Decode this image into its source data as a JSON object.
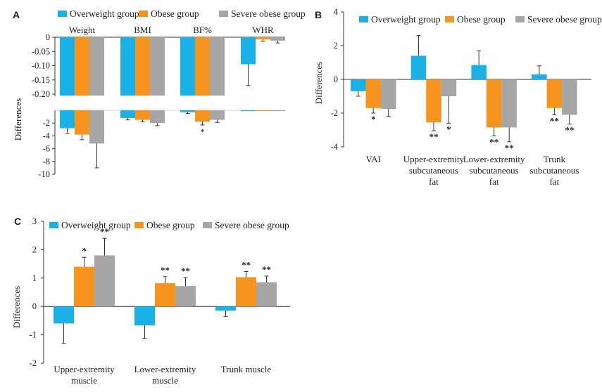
{
  "colors": {
    "overweight": "#1ab0e8",
    "obese": "#f7941d",
    "severe": "#a6a6a6"
  },
  "chart_data": [
    {
      "panel": "A",
      "type": "bar",
      "ylabel": "Differences",
      "legend": [
        "Overweight group",
        "Obese group",
        "Severe obese group"
      ],
      "legend_position": "top",
      "categories": [
        "Weight",
        "BMI",
        "BF%",
        "WHR"
      ],
      "broken_axis": true,
      "upper_segment": {
        "ylim": [
          -0.2,
          0
        ],
        "ticks": [
          "0",
          "-0.05",
          "-0.10",
          "-0.15",
          "-0.20"
        ]
      },
      "lower_segment": {
        "ylim": [
          -10,
          0
        ],
        "ticks": [
          "-2",
          "-4",
          "-6",
          "-8",
          "-10"
        ]
      },
      "series": [
        {
          "name": "Overweight group",
          "values": [
            -2.8,
            -1.2,
            -0.3,
            -0.095
          ],
          "err": [
            0.8,
            0.3,
            0.2,
            0.075
          ],
          "labels": [
            "",
            "",
            "",
            ""
          ]
        },
        {
          "name": "Obese group",
          "values": [
            -3.8,
            -1.5,
            -1.8,
            -0.008
          ],
          "err": [
            0.8,
            0.3,
            0.5,
            0.006
          ],
          "labels": [
            "",
            "",
            "*",
            ""
          ]
        },
        {
          "name": "Severe obese group",
          "values": [
            -5.2,
            -2.0,
            -1.5,
            -0.012
          ],
          "err": [
            3.8,
            0.4,
            0.4,
            0.008
          ],
          "labels": [
            "",
            "",
            "",
            ""
          ]
        }
      ]
    },
    {
      "panel": "B",
      "type": "bar",
      "ylabel": "Differences",
      "legend": [
        "Overweight group",
        "Obese group",
        "Severe obese group"
      ],
      "legend_position": "top",
      "categories": [
        [
          "VAI"
        ],
        [
          "Upper-extremity",
          "subcutaneous",
          "fat"
        ],
        [
          "Lower-extremity",
          "subcutaneous",
          "fat"
        ],
        [
          "Trunk",
          "subcutaneous",
          "fat"
        ]
      ],
      "ylim": [
        -4,
        4
      ],
      "ticks": [
        "4",
        "2",
        "0",
        "-2",
        "-4"
      ],
      "series": [
        {
          "name": "Overweight group",
          "values": [
            -0.7,
            1.4,
            0.85,
            0.3
          ],
          "err": [
            0.3,
            1.2,
            0.85,
            0.5
          ],
          "labels": [
            "",
            "",
            "",
            ""
          ]
        },
        {
          "name": "Obese group",
          "values": [
            -1.7,
            -2.55,
            -2.85,
            -1.7
          ],
          "err": [
            0.3,
            0.5,
            0.5,
            0.4
          ],
          "labels": [
            "*",
            "**",
            "**",
            "**"
          ]
        },
        {
          "name": "Severe obese group",
          "values": [
            -1.75,
            -1.0,
            -2.85,
            -2.1
          ],
          "err": [
            0.45,
            1.6,
            0.85,
            0.55
          ],
          "labels": [
            "",
            "*",
            "**",
            "**"
          ]
        }
      ]
    },
    {
      "panel": "C",
      "type": "bar",
      "ylabel": "Differences",
      "legend": [
        "Overweight group",
        "Obese group",
        "Severe obese group"
      ],
      "legend_position": "top",
      "categories": [
        [
          "Upper-extremity",
          "muscle"
        ],
        [
          "Lower-extremity",
          "muscle"
        ],
        [
          "Trunk muscle"
        ]
      ],
      "ylim": [
        -2,
        3
      ],
      "ticks": [
        "3",
        "2",
        "1",
        "0",
        "-1",
        "-2"
      ],
      "series": [
        {
          "name": "Overweight group",
          "values": [
            -0.6,
            -0.67,
            -0.15
          ],
          "err": [
            0.7,
            0.45,
            0.2
          ],
          "labels": [
            "",
            "",
            ""
          ]
        },
        {
          "name": "Obese group",
          "values": [
            1.4,
            0.82,
            1.03
          ],
          "err": [
            0.33,
            0.23,
            0.2
          ],
          "labels": [
            "*",
            "**",
            "**"
          ]
        },
        {
          "name": "Severe obese group",
          "values": [
            1.8,
            0.72,
            0.85
          ],
          "err": [
            0.6,
            0.3,
            0.22
          ],
          "labels": [
            "**",
            "**",
            "**"
          ]
        }
      ]
    }
  ]
}
